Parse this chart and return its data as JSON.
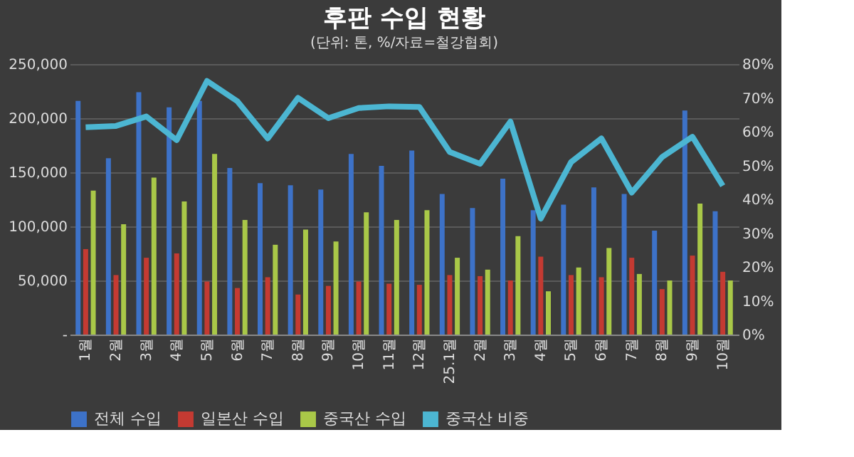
{
  "chart_data": {
    "type": "bar",
    "title": "후판 수입 현황",
    "subtitle": "(단위: 톤, %/자료=철강협회)",
    "categories": [
      "1월",
      "2월",
      "3월",
      "4월",
      "5월",
      "6월",
      "7월",
      "8월",
      "9월",
      "10월",
      "11월",
      "12월",
      "25.1월",
      "2월",
      "3월",
      "4월",
      "5월",
      "6월",
      "7월",
      "8월",
      "9월",
      "10월"
    ],
    "series": [
      {
        "name": "전체 수입",
        "color": "#3d72c8",
        "values": [
          216000,
          163000,
          224000,
          210000,
          216000,
          154000,
          140000,
          138000,
          134000,
          167000,
          156000,
          170000,
          130000,
          117000,
          144000,
          115000,
          120000,
          136000,
          130000,
          96000,
          207000,
          114000
        ]
      },
      {
        "name": "일본산 수입",
        "color": "#c43a32",
        "values": [
          79000,
          55000,
          71000,
          75000,
          49000,
          43000,
          53000,
          37000,
          45000,
          49000,
          47000,
          46000,
          55000,
          54000,
          50000,
          72000,
          55000,
          53000,
          71000,
          42000,
          73000,
          58000
        ]
      },
      {
        "name": "중국산 수입",
        "color": "#a9c848",
        "values": [
          133000,
          102000,
          145000,
          123000,
          167000,
          106000,
          83000,
          97000,
          86000,
          113000,
          106000,
          115000,
          71000,
          60000,
          91000,
          40000,
          62000,
          80000,
          56000,
          50000,
          121000,
          50000
        ]
      },
      {
        "name": "중국산 비중",
        "color": "#4cb6d2",
        "type": "line",
        "axis": "y2",
        "values": [
          61.3,
          61.7,
          64.5,
          57.5,
          75,
          69,
          58,
          70,
          64,
          67,
          67.5,
          67.3,
          54,
          50.5,
          63,
          34.3,
          51,
          58,
          42,
          52.5,
          58.5,
          44
        ]
      }
    ],
    "ylim": [
      0,
      250000
    ],
    "yticks": [
      {
        "value": 0,
        "label": "-"
      },
      {
        "value": 50000,
        "label": "50,000"
      },
      {
        "value": 100000,
        "label": "100,000"
      },
      {
        "value": 150000,
        "label": "150,000"
      },
      {
        "value": 200000,
        "label": "200,000"
      },
      {
        "value": 250000,
        "label": "250,000"
      }
    ],
    "y2lim": [
      0,
      80
    ],
    "y2ticks": [
      {
        "value": 0,
        "label": "0%"
      },
      {
        "value": 10,
        "label": "10%"
      },
      {
        "value": 20,
        "label": "20%"
      },
      {
        "value": 30,
        "label": "30%"
      },
      {
        "value": 40,
        "label": "40%"
      },
      {
        "value": 50,
        "label": "50%"
      },
      {
        "value": 60,
        "label": "60%"
      },
      {
        "value": 70,
        "label": "70%"
      },
      {
        "value": 80,
        "label": "80%"
      }
    ],
    "grid": "y",
    "legend": "bottom",
    "marker": "none",
    "line_style": "solid"
  }
}
